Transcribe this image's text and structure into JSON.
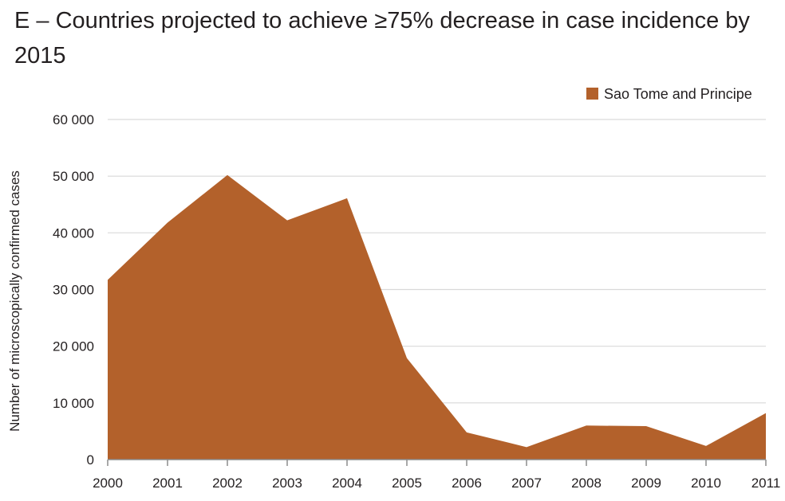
{
  "chart_data": {
    "type": "area",
    "title": "E – Countries projected to achieve ≥75% decrease in case incidence by 2015",
    "ylabel": "Number of microscopically confirmed cases",
    "xlabel": "",
    "x": [
      "2000",
      "2001",
      "2002",
      "2003",
      "2004",
      "2005",
      "2006",
      "2007",
      "2008",
      "2009",
      "2010",
      "2011"
    ],
    "series": [
      {
        "name": "Sao Tome and Principe",
        "color": "#b3612b",
        "values": [
          31700,
          41800,
          50200,
          42200,
          46100,
          17900,
          4800,
          2200,
          6000,
          5900,
          2400,
          8200
        ]
      }
    ],
    "ylim": [
      0,
      60000
    ],
    "yticks": [
      0,
      10000,
      20000,
      30000,
      40000,
      50000,
      60000
    ],
    "ytick_labels": [
      "0",
      "10 000",
      "20 000",
      "30 000",
      "40 000",
      "50 000",
      "60 000"
    ],
    "grid": true,
    "legend_position": "top-right"
  }
}
